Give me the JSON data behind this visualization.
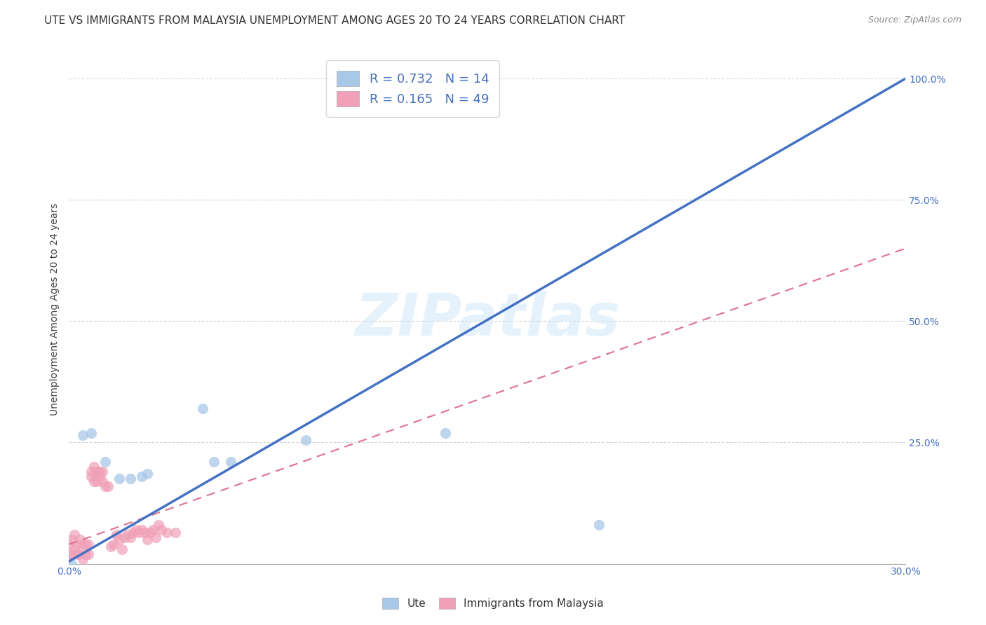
{
  "title": "UTE VS IMMIGRANTS FROM MALAYSIA UNEMPLOYMENT AMONG AGES 20 TO 24 YEARS CORRELATION CHART",
  "source": "Source: ZipAtlas.com",
  "ylabel": "Unemployment Among Ages 20 to 24 years",
  "xlim": [
    0.0,
    0.3
  ],
  "ylim": [
    0.0,
    1.05
  ],
  "xticks": [
    0.0,
    0.05,
    0.1,
    0.15,
    0.2,
    0.25,
    0.3
  ],
  "xticklabels": [
    "0.0%",
    "",
    "",
    "",
    "",
    "",
    "30.0%"
  ],
  "yticks": [
    0.0,
    0.25,
    0.5,
    0.75,
    1.0
  ],
  "yticklabels": [
    "",
    "25.0%",
    "50.0%",
    "75.0%",
    "100.0%"
  ],
  "ute_color": "#a8c8e8",
  "malaysia_color": "#f0a0b8",
  "legend_label_ute": "R = 0.732   N = 14",
  "legend_label_malaysia": "R = 0.165   N = 49",
  "watermark": "ZIPatlas",
  "ute_scatter_x": [
    0.001,
    0.005,
    0.008,
    0.013,
    0.018,
    0.022,
    0.026,
    0.028,
    0.048,
    0.052,
    0.058,
    0.085,
    0.135,
    0.19
  ],
  "ute_scatter_y": [
    0.0,
    0.265,
    0.27,
    0.21,
    0.175,
    0.175,
    0.18,
    0.185,
    0.32,
    0.21,
    0.21,
    0.255,
    0.27,
    0.08
  ],
  "malaysia_scatter_x": [
    0.0,
    0.0,
    0.001,
    0.001,
    0.002,
    0.002,
    0.003,
    0.003,
    0.004,
    0.004,
    0.005,
    0.005,
    0.006,
    0.006,
    0.007,
    0.007,
    0.008,
    0.008,
    0.009,
    0.009,
    0.01,
    0.01,
    0.011,
    0.011,
    0.012,
    0.012,
    0.013,
    0.014,
    0.015,
    0.016,
    0.017,
    0.018,
    0.019,
    0.02,
    0.021,
    0.022,
    0.023,
    0.024,
    0.025,
    0.026,
    0.027,
    0.028,
    0.029,
    0.03,
    0.031,
    0.032,
    0.033,
    0.035,
    0.038
  ],
  "malaysia_scatter_y": [
    0.02,
    0.04,
    0.02,
    0.05,
    0.03,
    0.06,
    0.02,
    0.04,
    0.02,
    0.05,
    0.01,
    0.04,
    0.02,
    0.04,
    0.02,
    0.04,
    0.18,
    0.19,
    0.2,
    0.17,
    0.19,
    0.17,
    0.18,
    0.19,
    0.17,
    0.19,
    0.16,
    0.16,
    0.035,
    0.04,
    0.06,
    0.05,
    0.03,
    0.055,
    0.06,
    0.055,
    0.065,
    0.07,
    0.065,
    0.07,
    0.065,
    0.05,
    0.065,
    0.07,
    0.055,
    0.08,
    0.07,
    0.065,
    0.065
  ],
  "ute_trendline_x": [
    0.0,
    0.3
  ],
  "ute_trendline_y": [
    0.005,
    1.0
  ],
  "malaysia_trendline_x": [
    0.0,
    0.3
  ],
  "malaysia_trendline_y": [
    0.04,
    0.65
  ],
  "title_fontsize": 11,
  "axis_label_fontsize": 10,
  "tick_fontsize": 10,
  "marker_size": 120,
  "trendline_blue": "#4472c4",
  "trendline_pink": "#e07090",
  "grid_color": "#cccccc",
  "background_color": "#ffffff",
  "tick_color": "#4472c4"
}
